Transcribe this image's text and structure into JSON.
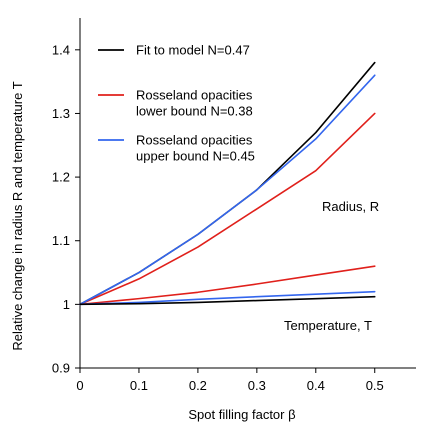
{
  "colors": {
    "black": "#000000",
    "red": "#e0201b",
    "blue": "#3366ee",
    "axis": "#000000"
  },
  "chart_data": {
    "type": "line",
    "xlabel": "Spot filling factor β",
    "ylabel": "Relative change in radius R and temperature T",
    "xlim": [
      0,
      0.57
    ],
    "ylim": [
      0.9,
      1.45
    ],
    "xticks": [
      "0",
      "0.1",
      "0.2",
      "0.3",
      "0.4",
      "0.5"
    ],
    "yticks": [
      "0.9",
      "1",
      "1.1",
      "1.2",
      "1.3",
      "1.4"
    ],
    "grid": false,
    "legend": [
      {
        "label": "Fit to model N=0.47",
        "color": "#000000"
      },
      {
        "label": "Rosseland opacities lower bound N=0.38",
        "color": "#e0201b"
      },
      {
        "label": "Rosseland opacities upper bound N=0.45",
        "color": "#3366ee"
      }
    ],
    "legend_lines": [
      [
        "Fit to model N=0.47"
      ],
      [
        "Rosseland opacities",
        "lower bound N=0.38"
      ],
      [
        "Rosseland opacities",
        "upper bound N=0.45"
      ]
    ],
    "legend_position": "top-left",
    "annotations": [
      "Radius, R",
      "Temperature, T"
    ],
    "series": [
      {
        "name": "Fit to model N=0.47",
        "quantity": "Radius, R",
        "color": "#000000",
        "x": [
          0,
          0.1,
          0.2,
          0.3,
          0.4,
          0.5
        ],
        "y": [
          1.0,
          1.05,
          1.11,
          1.18,
          1.27,
          1.38
        ]
      },
      {
        "name": "Rosseland opacities lower bound N=0.38",
        "quantity": "Radius, R",
        "color": "#e0201b",
        "x": [
          0,
          0.1,
          0.2,
          0.3,
          0.4,
          0.5
        ],
        "y": [
          1.0,
          1.04,
          1.09,
          1.15,
          1.21,
          1.3
        ]
      },
      {
        "name": "Rosseland opacities upper bound N=0.45",
        "quantity": "Radius, R",
        "color": "#3366ee",
        "x": [
          0,
          0.1,
          0.2,
          0.3,
          0.4,
          0.5
        ],
        "y": [
          1.0,
          1.05,
          1.11,
          1.18,
          1.26,
          1.36
        ]
      },
      {
        "name": "Rosseland opacities lower bound N=0.38",
        "quantity": "Temperature, T",
        "color": "#e0201b",
        "x": [
          0,
          0.1,
          0.2,
          0.3,
          0.4,
          0.5
        ],
        "y": [
          1.0,
          1.009,
          1.019,
          1.032,
          1.046,
          1.06
        ]
      },
      {
        "name": "Rosseland opacities upper bound N=0.45",
        "quantity": "Temperature, T",
        "color": "#3366ee",
        "x": [
          0,
          0.1,
          0.2,
          0.3,
          0.4,
          0.5
        ],
        "y": [
          1.0,
          1.003,
          1.008,
          1.012,
          1.016,
          1.02
        ]
      },
      {
        "name": "Fit to model N=0.47",
        "quantity": "Temperature, T",
        "color": "#000000",
        "x": [
          0,
          0.1,
          0.2,
          0.3,
          0.4,
          0.5
        ],
        "y": [
          1.0,
          1.001,
          1.003,
          1.006,
          1.009,
          1.012
        ]
      }
    ]
  }
}
